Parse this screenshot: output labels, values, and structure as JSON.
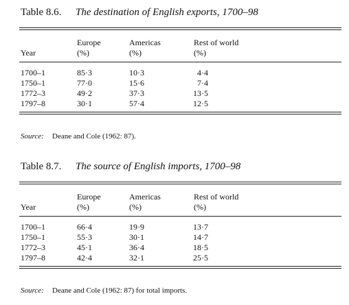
{
  "tables": [
    {
      "label": "Table 8.6.",
      "caption": "The destination of English exports, 1700–98",
      "headers": [
        [
          "",
          "Year"
        ],
        [
          "Europe",
          "(%)"
        ],
        [
          "Americas",
          "(%)"
        ],
        [
          "Rest of world",
          "(%)"
        ]
      ],
      "rows": [
        [
          "1700–1",
          "85·3",
          "10·3",
          "4·4"
        ],
        [
          "1750–1",
          "77·0",
          "15·6",
          "7·4"
        ],
        [
          "1772–3",
          "49·2",
          "37·3",
          "13·5"
        ],
        [
          "1797–8",
          "30·1",
          "57·4",
          "12·5"
        ]
      ],
      "source_label": "Source:",
      "source_text": "Deane and Cole (1962: 87)."
    },
    {
      "label": "Table 8.7.",
      "caption": "The source of English imports, 1700–98",
      "headers": [
        [
          "",
          "Year"
        ],
        [
          "Europe",
          "(%)"
        ],
        [
          "Americas",
          "(%)"
        ],
        [
          "Rest of world",
          "(%)"
        ]
      ],
      "rows": [
        [
          "1700–1",
          "66·4",
          "19·9",
          "13·7"
        ],
        [
          "1750–1",
          "55·3",
          "30·1",
          "14·7"
        ],
        [
          "1772–3",
          "45·1",
          "36·4",
          "18·5"
        ],
        [
          "1797–8",
          "42·4",
          "32·1",
          "25·5"
        ]
      ],
      "source_label": "Source:",
      "source_text": "Deane and Cole (1962: 87) for total imports."
    }
  ]
}
